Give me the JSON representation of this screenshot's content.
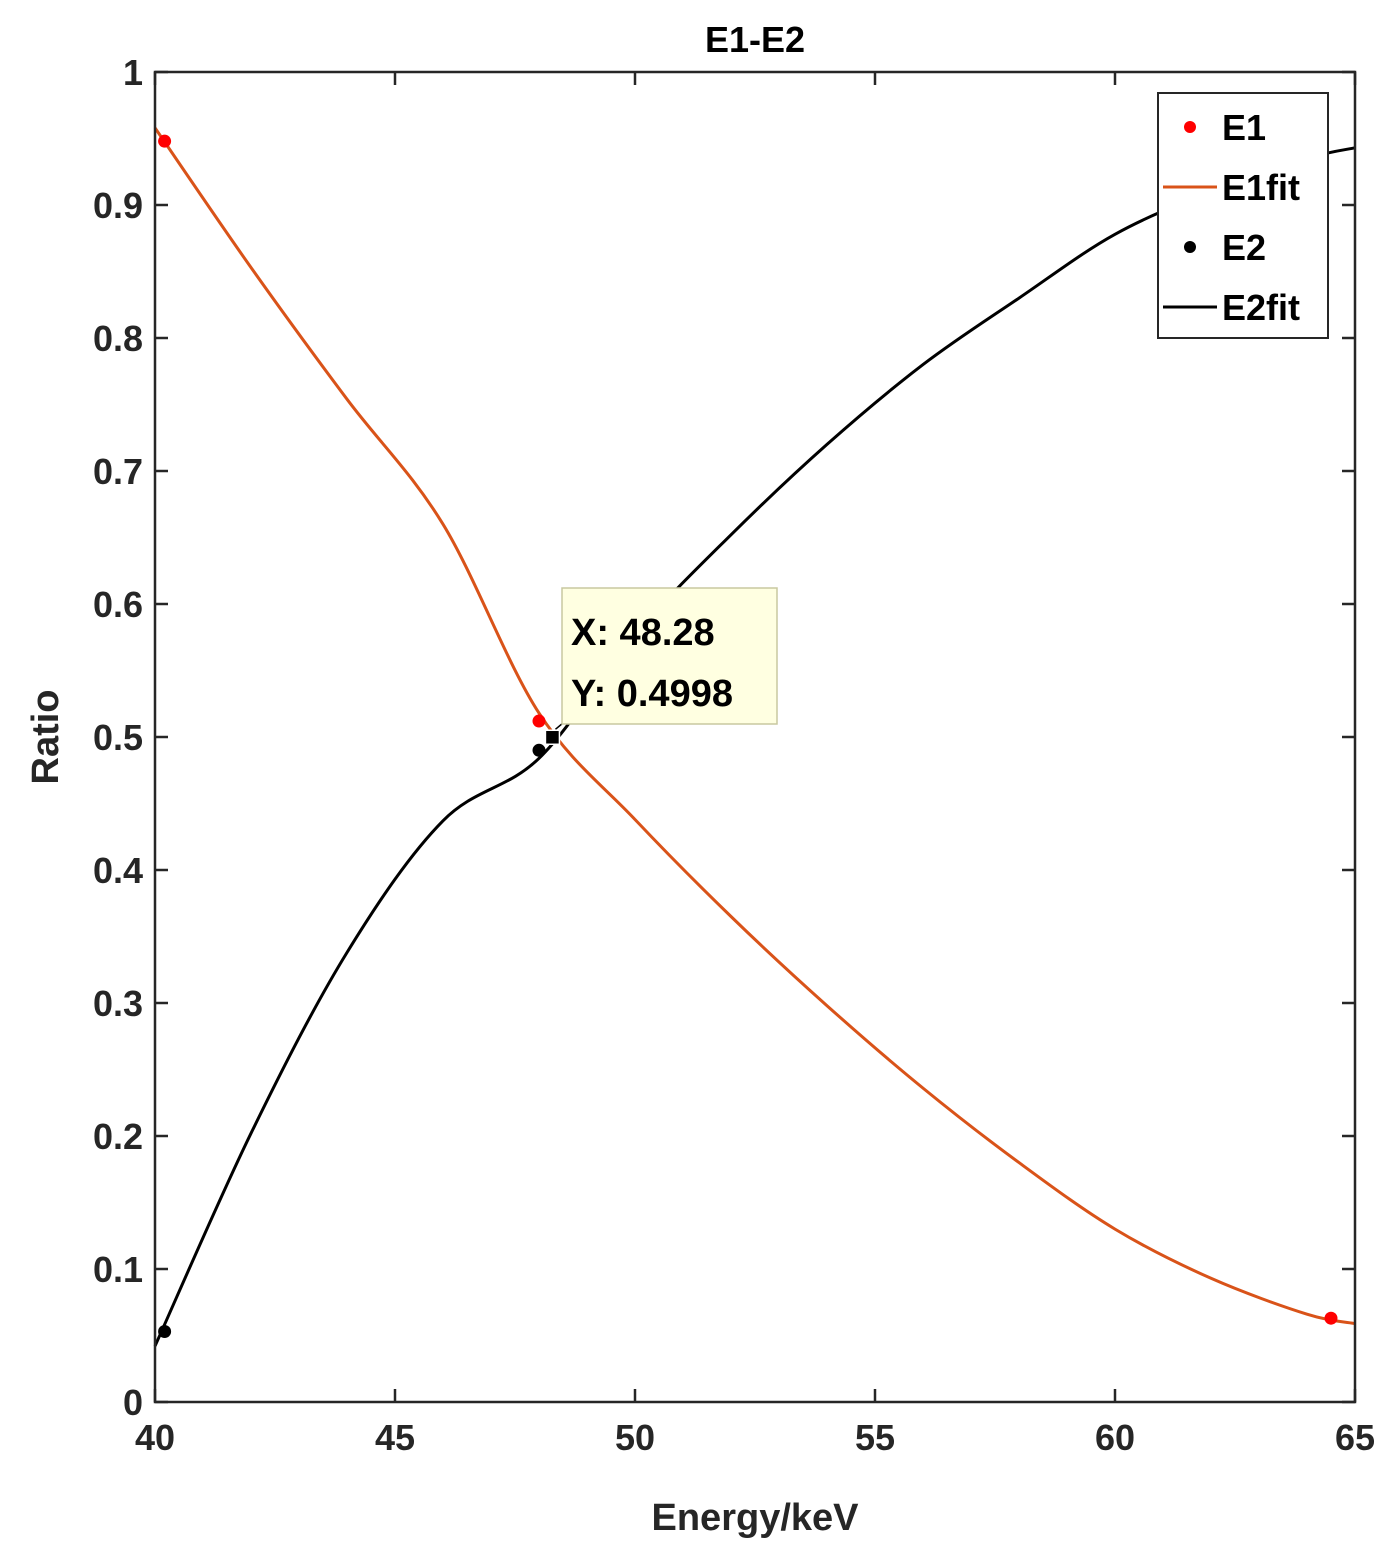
{
  "chart_data": {
    "type": "line",
    "title": "E1-E2",
    "xlabel": "Energy/keV",
    "ylabel": "Ratio",
    "xlim": [
      40,
      65
    ],
    "ylim": [
      0,
      1
    ],
    "xticks": [
      40,
      45,
      50,
      55,
      60,
      65
    ],
    "xtick_labels": [
      "40",
      "45",
      "50",
      "55",
      "60",
      "65"
    ],
    "yticks": [
      0,
      0.1,
      0.2,
      0.3,
      0.4,
      0.5,
      0.6,
      0.7,
      0.8,
      0.9,
      1
    ],
    "ytick_labels": [
      "0",
      "0.1",
      "0.2",
      "0.3",
      "0.4",
      "0.5",
      "0.6",
      "0.7",
      "0.8",
      "0.9",
      "1"
    ],
    "grid": false,
    "legend_position": "top-right",
    "series": [
      {
        "name": "E1",
        "kind": "points",
        "color": "#ff0000",
        "x": [
          40.2,
          48.0,
          64.5
        ],
        "y": [
          0.948,
          0.512,
          0.063
        ]
      },
      {
        "name": "E1fit",
        "kind": "line",
        "color": "#d95319",
        "x": [
          40,
          42,
          44,
          46,
          48,
          50,
          52,
          54,
          56,
          58,
          60,
          62,
          64,
          65
        ],
        "y": [
          0.958,
          0.853,
          0.754,
          0.66,
          0.518,
          0.438,
          0.365,
          0.298,
          0.236,
          0.18,
          0.13,
          0.093,
          0.066,
          0.059
        ]
      },
      {
        "name": "E2",
        "kind": "points",
        "color": "#000000",
        "x": [
          40.2,
          48.0
        ],
        "y": [
          0.053,
          0.49
        ]
      },
      {
        "name": "E2fit",
        "kind": "line",
        "color": "#000000",
        "x": [
          40,
          42,
          44,
          46,
          48,
          50,
          52,
          54,
          56,
          58,
          60,
          62,
          64,
          65
        ],
        "y": [
          0.042,
          0.202,
          0.338,
          0.437,
          0.484,
          0.577,
          0.652,
          0.72,
          0.78,
          0.83,
          0.878,
          0.91,
          0.935,
          0.943
        ]
      }
    ],
    "datatip": {
      "x": 48.28,
      "y": 0.4998,
      "x_text": "X: 48.28",
      "y_text": "Y: 0.4998"
    }
  }
}
